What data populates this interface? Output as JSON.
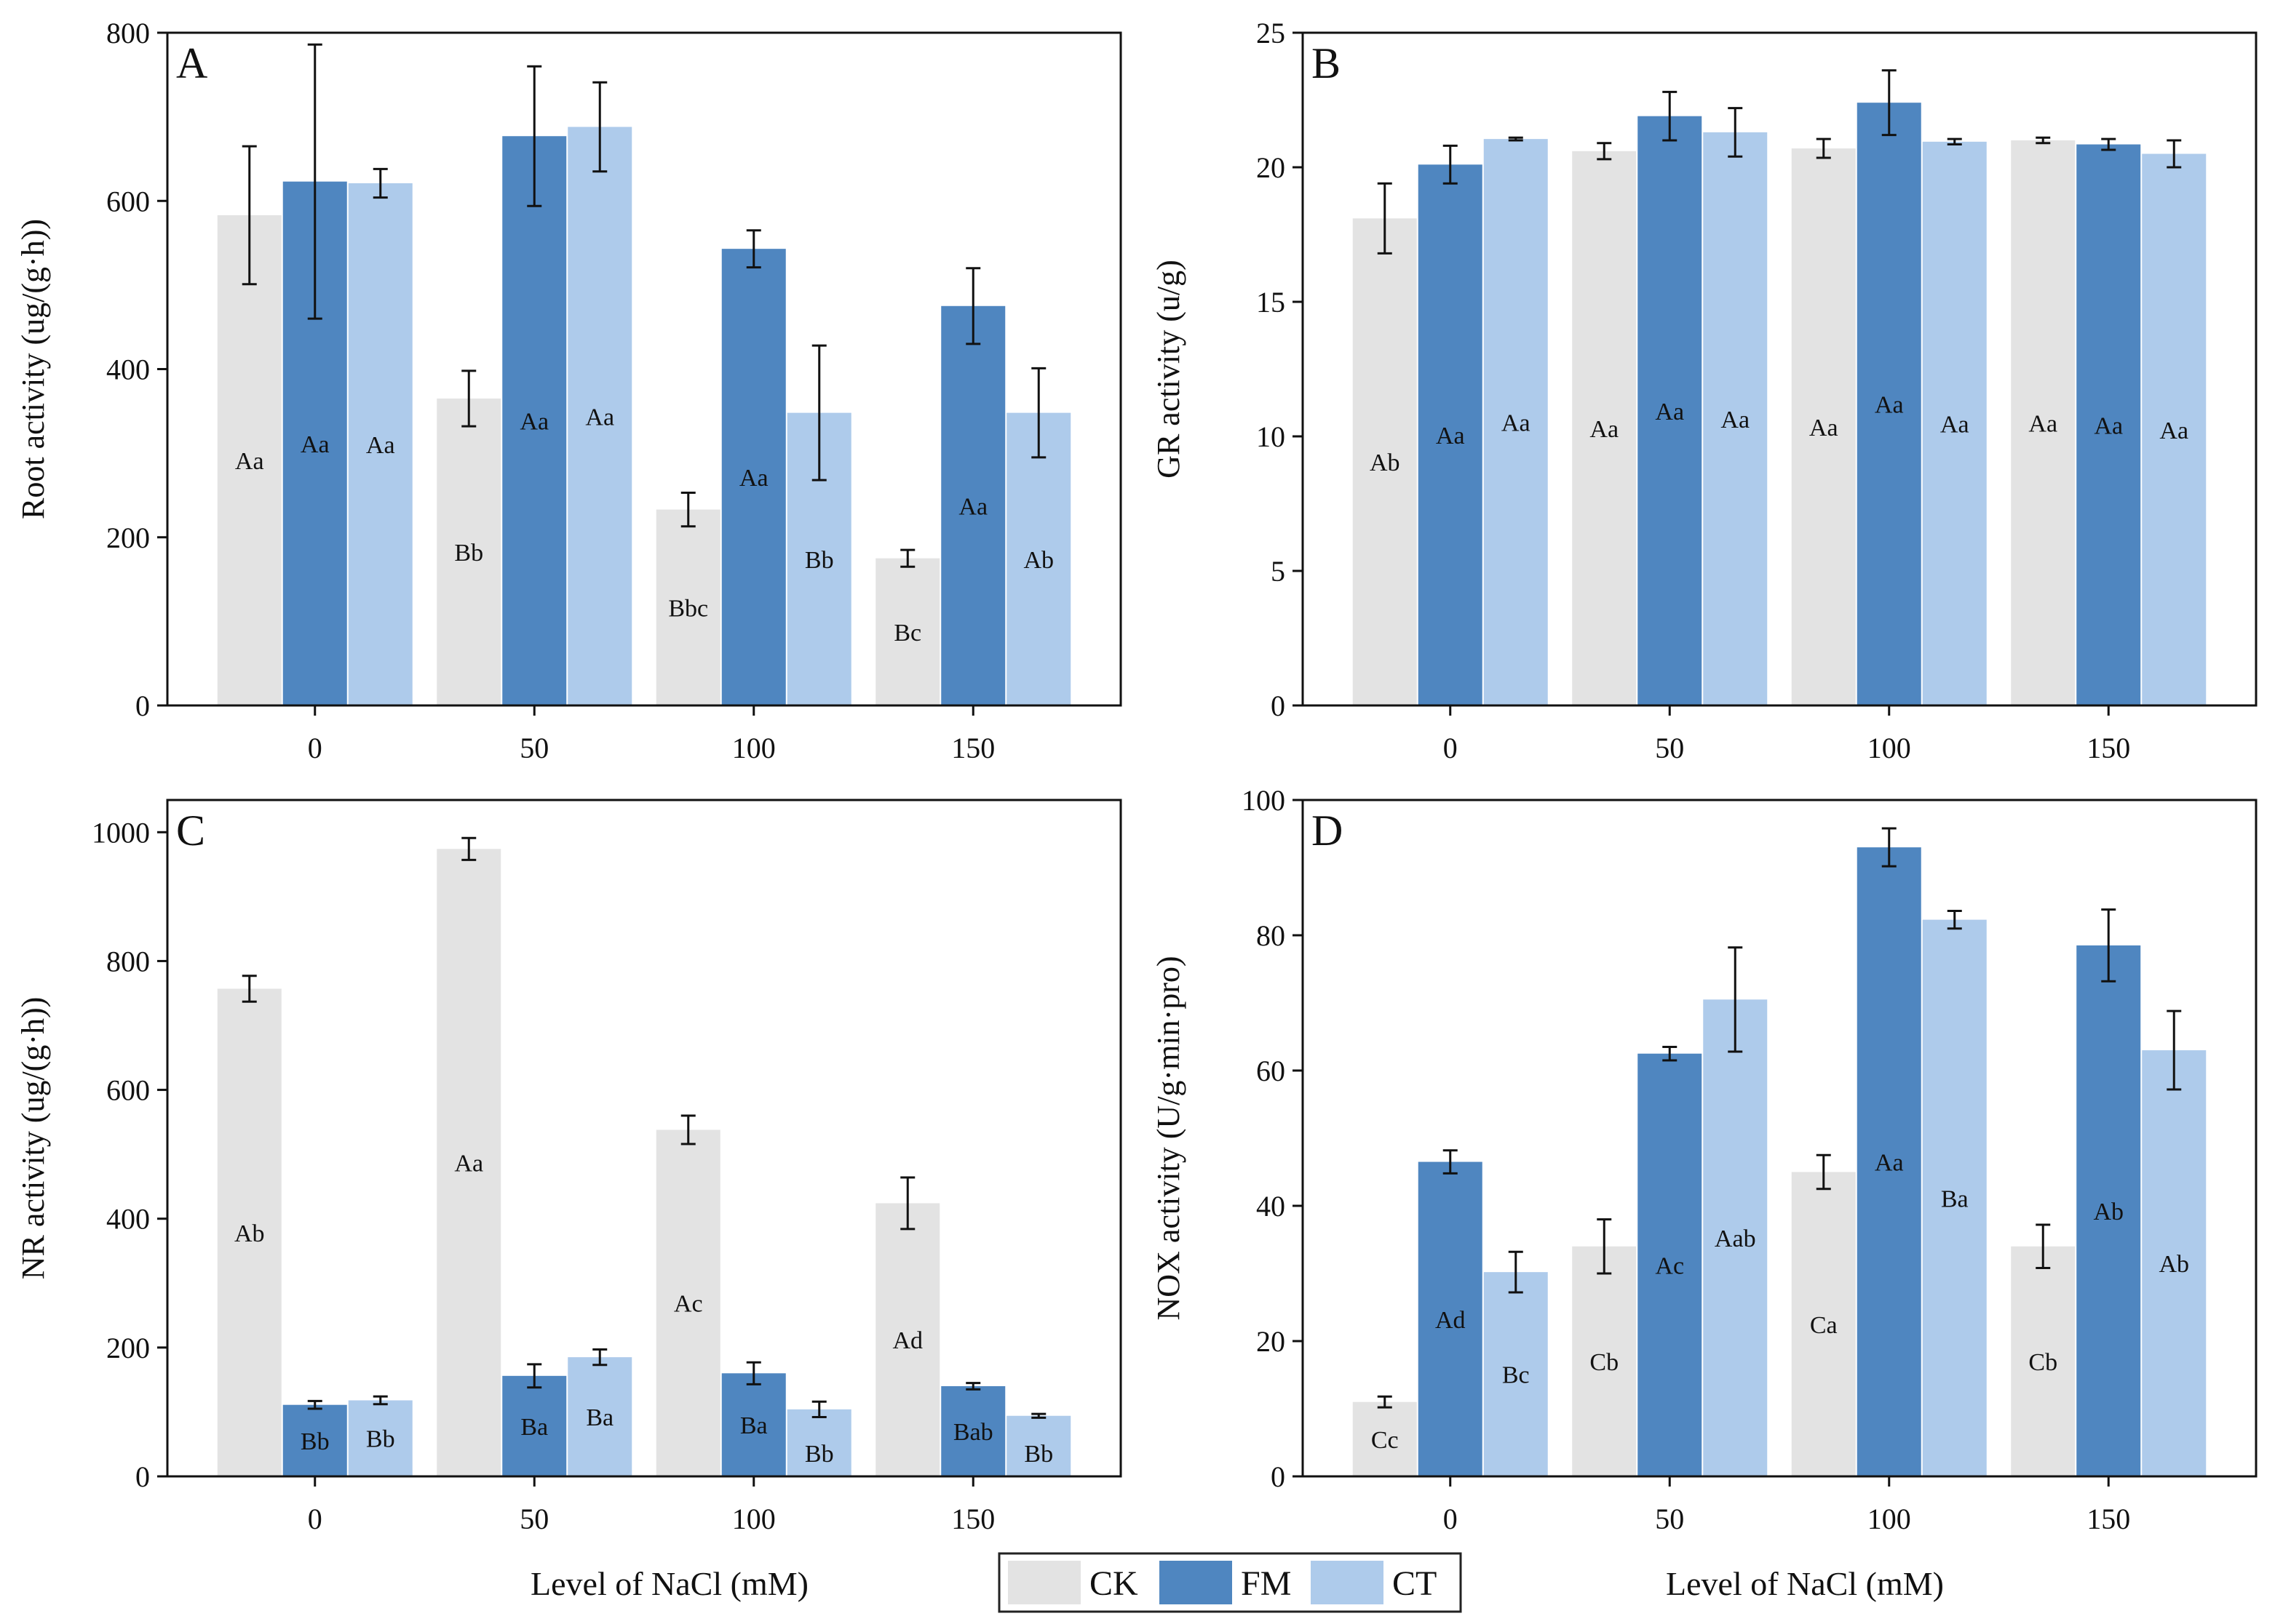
{
  "colors": {
    "CK": "#e3e3e3",
    "FM": "#4f86c0",
    "CT": "#aecbeb"
  },
  "legend": [
    {
      "key": "CK",
      "label": "CK"
    },
    {
      "key": "FM",
      "label": "FM"
    },
    {
      "key": "CT",
      "label": "CT"
    }
  ],
  "x_titles": {
    "left": "Level of NaCl (mM)",
    "right": "Level of NaCl (mM)"
  },
  "chart_data": [
    {
      "panel": "A",
      "type": "bar",
      "ylabel": "Root activity (ug/(g·h))",
      "ylim": [
        0,
        800
      ],
      "yticks": [
        0,
        200,
        400,
        600,
        800
      ],
      "categories": [
        "0",
        "50",
        "100",
        "150"
      ],
      "series": [
        {
          "name": "CK",
          "values": [
            583,
            365,
            233,
            175
          ],
          "errors": [
            82,
            33,
            20,
            10
          ],
          "labels": [
            "Aa",
            "Bb",
            "Bbc",
            "Bc"
          ]
        },
        {
          "name": "FM",
          "values": [
            623,
            677,
            543,
            475
          ],
          "errors": [
            163,
            83,
            22,
            45
          ],
          "labels": [
            "Aa",
            "Aa",
            "Aa",
            "Aa"
          ]
        },
        {
          "name": "CT",
          "values": [
            621,
            688,
            348,
            348
          ],
          "errors": [
            17,
            53,
            80,
            53
          ],
          "labels": [
            "Aa",
            "Aa",
            "Bb",
            "Ab"
          ]
        }
      ]
    },
    {
      "panel": "B",
      "type": "bar",
      "ylabel": "GR activity (u/g)",
      "ylim": [
        0,
        25
      ],
      "yticks": [
        0,
        5,
        10,
        15,
        20,
        25
      ],
      "categories": [
        "0",
        "50",
        "100",
        "150"
      ],
      "series": [
        {
          "name": "CK",
          "values": [
            18.1,
            20.6,
            20.7,
            21.0
          ],
          "errors": [
            1.3,
            0.3,
            0.35,
            0.1
          ],
          "labels": [
            "Ab",
            "Aa",
            "Aa",
            "Aa"
          ]
        },
        {
          "name": "FM",
          "values": [
            20.1,
            21.9,
            22.4,
            20.85
          ],
          "errors": [
            0.7,
            0.9,
            1.2,
            0.2
          ],
          "labels": [
            "Aa",
            "Aa",
            "Aa",
            "Aa"
          ]
        },
        {
          "name": "CT",
          "values": [
            21.05,
            21.3,
            20.95,
            20.5
          ],
          "errors": [
            0.05,
            0.9,
            0.1,
            0.5
          ],
          "labels": [
            "Aa",
            "Aa",
            "Aa",
            "Aa"
          ]
        }
      ]
    },
    {
      "panel": "C",
      "type": "bar",
      "ylabel": "NR activity (ug/(g·h))",
      "ylim": [
        0,
        1050
      ],
      "yticks": [
        0,
        200,
        400,
        600,
        800,
        1000
      ],
      "categories": [
        "0",
        "50",
        "100",
        "150"
      ],
      "series": [
        {
          "name": "CK",
          "values": [
            757,
            974,
            538,
            424
          ],
          "errors": [
            20,
            17,
            22,
            40
          ],
          "labels": [
            "Ab",
            "Aa",
            "Ac",
            "Ad"
          ]
        },
        {
          "name": "FM",
          "values": [
            111,
            156,
            160,
            140
          ],
          "errors": [
            6,
            18,
            17,
            5
          ],
          "labels": [
            "Bb",
            "Ba",
            "Ba",
            "Bab"
          ]
        },
        {
          "name": "CT",
          "values": [
            118,
            185,
            104,
            94
          ],
          "errors": [
            6,
            12,
            12,
            3
          ],
          "labels": [
            "Bb",
            "Ba",
            "Bb",
            "Bb"
          ]
        }
      ]
    },
    {
      "panel": "D",
      "type": "bar",
      "ylabel": "NOX activity (U/g·min·pro)",
      "ylim": [
        0,
        100
      ],
      "yticks": [
        0,
        20,
        40,
        60,
        80,
        100
      ],
      "categories": [
        "0",
        "50",
        "100",
        "150"
      ],
      "series": [
        {
          "name": "CK",
          "values": [
            11,
            34,
            45,
            34
          ],
          "errors": [
            0.8,
            4,
            2.5,
            3.2
          ],
          "labels": [
            "Cc",
            "Cb",
            "Ca",
            "Cb"
          ]
        },
        {
          "name": "FM",
          "values": [
            46.5,
            62.5,
            93,
            78.5
          ],
          "errors": [
            1.7,
            1,
            2.8,
            5.3
          ],
          "labels": [
            "Ad",
            "Ac",
            "Aa",
            "Ab"
          ]
        },
        {
          "name": "CT",
          "values": [
            30.2,
            70.5,
            82.3,
            63
          ],
          "errors": [
            3,
            7.7,
            1.3,
            5.8
          ],
          "labels": [
            "Bc",
            "Aab",
            "Ba",
            "Ab"
          ]
        }
      ]
    }
  ]
}
